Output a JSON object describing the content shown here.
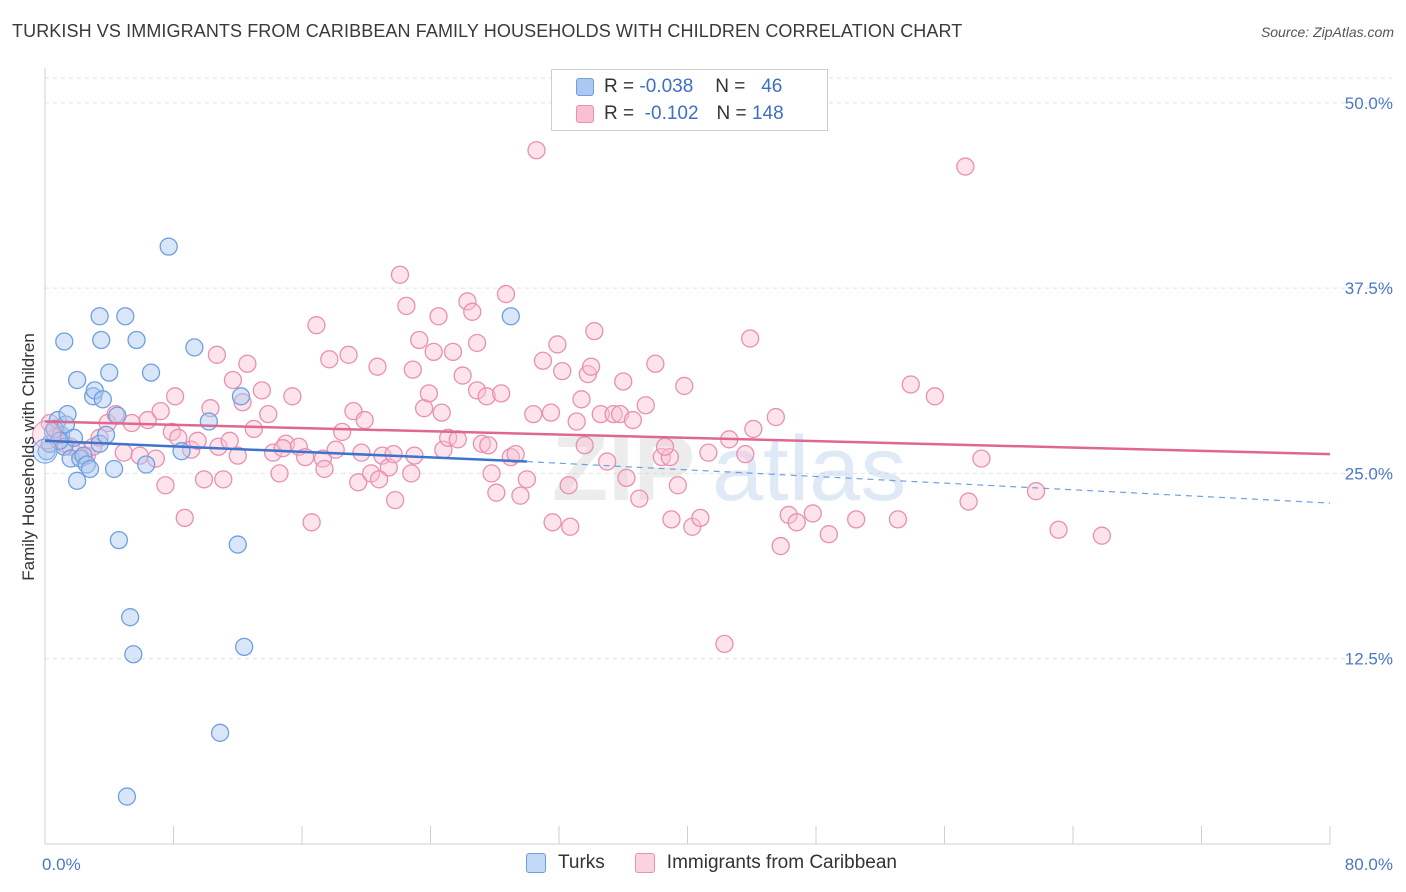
{
  "title": "TURKISH VS IMMIGRANTS FROM CARIBBEAN FAMILY HOUSEHOLDS WITH CHILDREN CORRELATION CHART",
  "source": "Source: ZipAtlas.com",
  "watermark": {
    "zip": "ZIP",
    "atlas": "atlas"
  },
  "legend": {
    "r_label": "R =",
    "n_label": "N =",
    "series": [
      {
        "name": "Turks",
        "r": "-0.038",
        "n": "46",
        "fill": "#aac8f0",
        "stroke": "#6f9fe0"
      },
      {
        "name": "Immigrants from Caribbean",
        "r": "-0.102",
        "n": "148",
        "fill": "#f8c0d4",
        "stroke": "#e990b0"
      }
    ]
  },
  "chart_data": {
    "type": "scatter",
    "title": "TURKISH VS IMMIGRANTS FROM CARIBBEAN FAMILY HOUSEHOLDS WITH CHILDREN CORRELATION CHART",
    "xlabel": "",
    "ylabel": "Family Households with Children",
    "xlim": [
      0,
      80
    ],
    "ylim": [
      0,
      50
    ],
    "x_tick_labels": [
      "0.0%",
      "80.0%"
    ],
    "y_ticks": [
      12.5,
      25.0,
      37.5,
      50.0
    ],
    "y_tick_labels": [
      "12.5%",
      "25.0%",
      "37.5%",
      "50.0%"
    ],
    "grid": true,
    "series": [
      {
        "name": "Turks",
        "color": "#6f9fe0",
        "fill": "#aac8f0",
        "trend": {
          "x_solid": [
            0,
            30
          ],
          "y_solid": [
            27.2,
            25.8
          ],
          "x_dashed": [
            30,
            80
          ],
          "y_dashed": [
            25.8,
            23.0
          ]
        },
        "points": [
          [
            0.1,
            26.5
          ],
          [
            0.3,
            27.0
          ],
          [
            0.5,
            27.8
          ],
          [
            0.8,
            28.6
          ],
          [
            1.0,
            27.6
          ],
          [
            1.2,
            26.8
          ],
          [
            0.6,
            28.0
          ],
          [
            1.3,
            28.3
          ],
          [
            1.4,
            29.0
          ],
          [
            1.6,
            26.0
          ],
          [
            1.8,
            27.4
          ],
          [
            2.0,
            24.5
          ],
          [
            2.2,
            26.0
          ],
          [
            2.4,
            26.2
          ],
          [
            2.6,
            25.6
          ],
          [
            2.8,
            25.3
          ],
          [
            3.0,
            30.2
          ],
          [
            3.1,
            30.6
          ],
          [
            3.4,
            27.0
          ],
          [
            3.6,
            30.0
          ],
          [
            3.8,
            27.6
          ],
          [
            4.0,
            31.8
          ],
          [
            4.3,
            25.3
          ],
          [
            4.5,
            28.9
          ],
          [
            4.6,
            20.5
          ],
          [
            5.0,
            35.6
          ],
          [
            5.3,
            15.3
          ],
          [
            5.5,
            12.8
          ],
          [
            5.7,
            34.0
          ],
          [
            6.3,
            25.6
          ],
          [
            6.6,
            31.8
          ],
          [
            7.7,
            40.3
          ],
          [
            8.5,
            26.5
          ],
          [
            9.3,
            33.5
          ],
          [
            10.2,
            28.5
          ],
          [
            12.0,
            20.2
          ],
          [
            12.2,
            30.2
          ],
          [
            12.4,
            13.3
          ],
          [
            10.9,
            7.5
          ],
          [
            5.1,
            3.2
          ],
          [
            3.5,
            34.0
          ],
          [
            1.2,
            33.9
          ],
          [
            2.0,
            31.3
          ],
          [
            3.4,
            35.6
          ],
          [
            29.0,
            35.6
          ],
          [
            0.9,
            27.2
          ]
        ]
      },
      {
        "name": "Immigrants from Caribbean",
        "color": "#e990b0",
        "fill": "#f8c0d4",
        "trend": {
          "x_solid": [
            0,
            80
          ],
          "y_solid": [
            28.5,
            26.3
          ]
        },
        "points": [
          [
            0.3,
            28.4
          ],
          [
            0.8,
            27.6
          ],
          [
            1.2,
            27.0
          ],
          [
            1.6,
            26.8
          ],
          [
            2.1,
            26.5
          ],
          [
            2.6,
            26.2
          ],
          [
            3.0,
            26.8
          ],
          [
            3.4,
            27.4
          ],
          [
            3.9,
            28.4
          ],
          [
            4.4,
            29.0
          ],
          [
            4.9,
            26.4
          ],
          [
            5.4,
            28.4
          ],
          [
            5.9,
            26.2
          ],
          [
            6.4,
            28.6
          ],
          [
            6.9,
            26.0
          ],
          [
            7.2,
            29.2
          ],
          [
            7.5,
            24.2
          ],
          [
            7.9,
            27.8
          ],
          [
            8.1,
            30.2
          ],
          [
            8.3,
            27.4
          ],
          [
            8.7,
            22.0
          ],
          [
            9.1,
            26.6
          ],
          [
            9.5,
            27.2
          ],
          [
            9.9,
            24.6
          ],
          [
            10.3,
            29.4
          ],
          [
            10.7,
            33.0
          ],
          [
            10.8,
            26.8
          ],
          [
            11.1,
            24.6
          ],
          [
            11.5,
            27.2
          ],
          [
            11.7,
            31.3
          ],
          [
            12.0,
            26.2
          ],
          [
            12.3,
            29.8
          ],
          [
            12.6,
            32.4
          ],
          [
            13.0,
            28.0
          ],
          [
            13.5,
            30.6
          ],
          [
            13.9,
            29.0
          ],
          [
            14.2,
            26.4
          ],
          [
            14.6,
            25.0
          ],
          [
            15.0,
            27.0
          ],
          [
            15.4,
            30.2
          ],
          [
            15.8,
            26.8
          ],
          [
            16.2,
            26.1
          ],
          [
            16.6,
            21.7
          ],
          [
            16.9,
            35.0
          ],
          [
            17.3,
            26.0
          ],
          [
            17.7,
            32.7
          ],
          [
            18.1,
            26.6
          ],
          [
            18.5,
            27.8
          ],
          [
            18.9,
            33.0
          ],
          [
            19.2,
            29.2
          ],
          [
            19.5,
            24.4
          ],
          [
            19.9,
            28.6
          ],
          [
            20.3,
            25.0
          ],
          [
            20.7,
            32.2
          ],
          [
            21.0,
            26.2
          ],
          [
            21.4,
            25.4
          ],
          [
            21.7,
            26.3
          ],
          [
            21.8,
            23.2
          ],
          [
            22.1,
            38.4
          ],
          [
            22.5,
            36.3
          ],
          [
            22.8,
            25.0
          ],
          [
            23.0,
            26.2
          ],
          [
            23.3,
            34.0
          ],
          [
            23.6,
            29.4
          ],
          [
            23.9,
            30.4
          ],
          [
            24.2,
            33.2
          ],
          [
            24.5,
            35.6
          ],
          [
            24.8,
            26.6
          ],
          [
            25.1,
            27.4
          ],
          [
            25.4,
            33.2
          ],
          [
            25.7,
            27.3
          ],
          [
            26.0,
            31.6
          ],
          [
            26.3,
            36.6
          ],
          [
            26.6,
            35.9
          ],
          [
            26.9,
            30.6
          ],
          [
            27.2,
            27.0
          ],
          [
            27.5,
            30.2
          ],
          [
            27.8,
            25.0
          ],
          [
            28.1,
            23.7
          ],
          [
            28.4,
            30.4
          ],
          [
            28.7,
            37.1
          ],
          [
            29.0,
            26.1
          ],
          [
            29.3,
            26.3
          ],
          [
            29.6,
            23.5
          ],
          [
            30.0,
            24.6
          ],
          [
            30.4,
            29.0
          ],
          [
            30.6,
            46.8
          ],
          [
            31.0,
            32.6
          ],
          [
            31.6,
            21.7
          ],
          [
            31.9,
            33.7
          ],
          [
            32.2,
            31.9
          ],
          [
            32.6,
            24.2
          ],
          [
            33.1,
            28.5
          ],
          [
            33.4,
            30.0
          ],
          [
            33.8,
            31.7
          ],
          [
            34.0,
            32.2
          ],
          [
            34.2,
            34.6
          ],
          [
            34.6,
            29.0
          ],
          [
            35.0,
            25.8
          ],
          [
            35.4,
            29.0
          ],
          [
            35.8,
            29.0
          ],
          [
            36.2,
            24.7
          ],
          [
            36.6,
            28.6
          ],
          [
            37.0,
            23.3
          ],
          [
            37.4,
            29.6
          ],
          [
            38.0,
            32.4
          ],
          [
            38.4,
            26.1
          ],
          [
            38.9,
            26.1
          ],
          [
            39.0,
            21.9
          ],
          [
            39.4,
            24.2
          ],
          [
            39.8,
            30.9
          ],
          [
            40.3,
            21.4
          ],
          [
            40.8,
            22.0
          ],
          [
            41.3,
            26.4
          ],
          [
            42.3,
            13.5
          ],
          [
            42.6,
            27.3
          ],
          [
            43.6,
            26.3
          ],
          [
            43.9,
            34.1
          ],
          [
            44.1,
            28.0
          ],
          [
            45.5,
            28.8
          ],
          [
            45.8,
            20.1
          ],
          [
            46.3,
            22.2
          ],
          [
            46.8,
            21.7
          ],
          [
            47.8,
            22.3
          ],
          [
            48.8,
            20.9
          ],
          [
            53.9,
            31.0
          ],
          [
            55.4,
            30.2
          ],
          [
            58.3,
            26.0
          ],
          [
            61.7,
            23.8
          ],
          [
            63.1,
            21.2
          ],
          [
            65.8,
            20.8
          ],
          [
            57.5,
            23.1
          ],
          [
            50.5,
            21.9
          ],
          [
            53.1,
            21.9
          ],
          [
            57.3,
            45.7
          ],
          [
            38.6,
            26.8
          ],
          [
            14.8,
            26.7
          ],
          [
            17.4,
            25.3
          ],
          [
            19.7,
            26.4
          ],
          [
            20.8,
            24.6
          ],
          [
            22.9,
            32.0
          ],
          [
            24.7,
            29.1
          ],
          [
            26.9,
            33.8
          ],
          [
            27.6,
            26.9
          ],
          [
            31.5,
            29.1
          ],
          [
            32.7,
            21.4
          ],
          [
            33.6,
            26.9
          ],
          [
            36.0,
            31.2
          ]
        ]
      }
    ]
  }
}
